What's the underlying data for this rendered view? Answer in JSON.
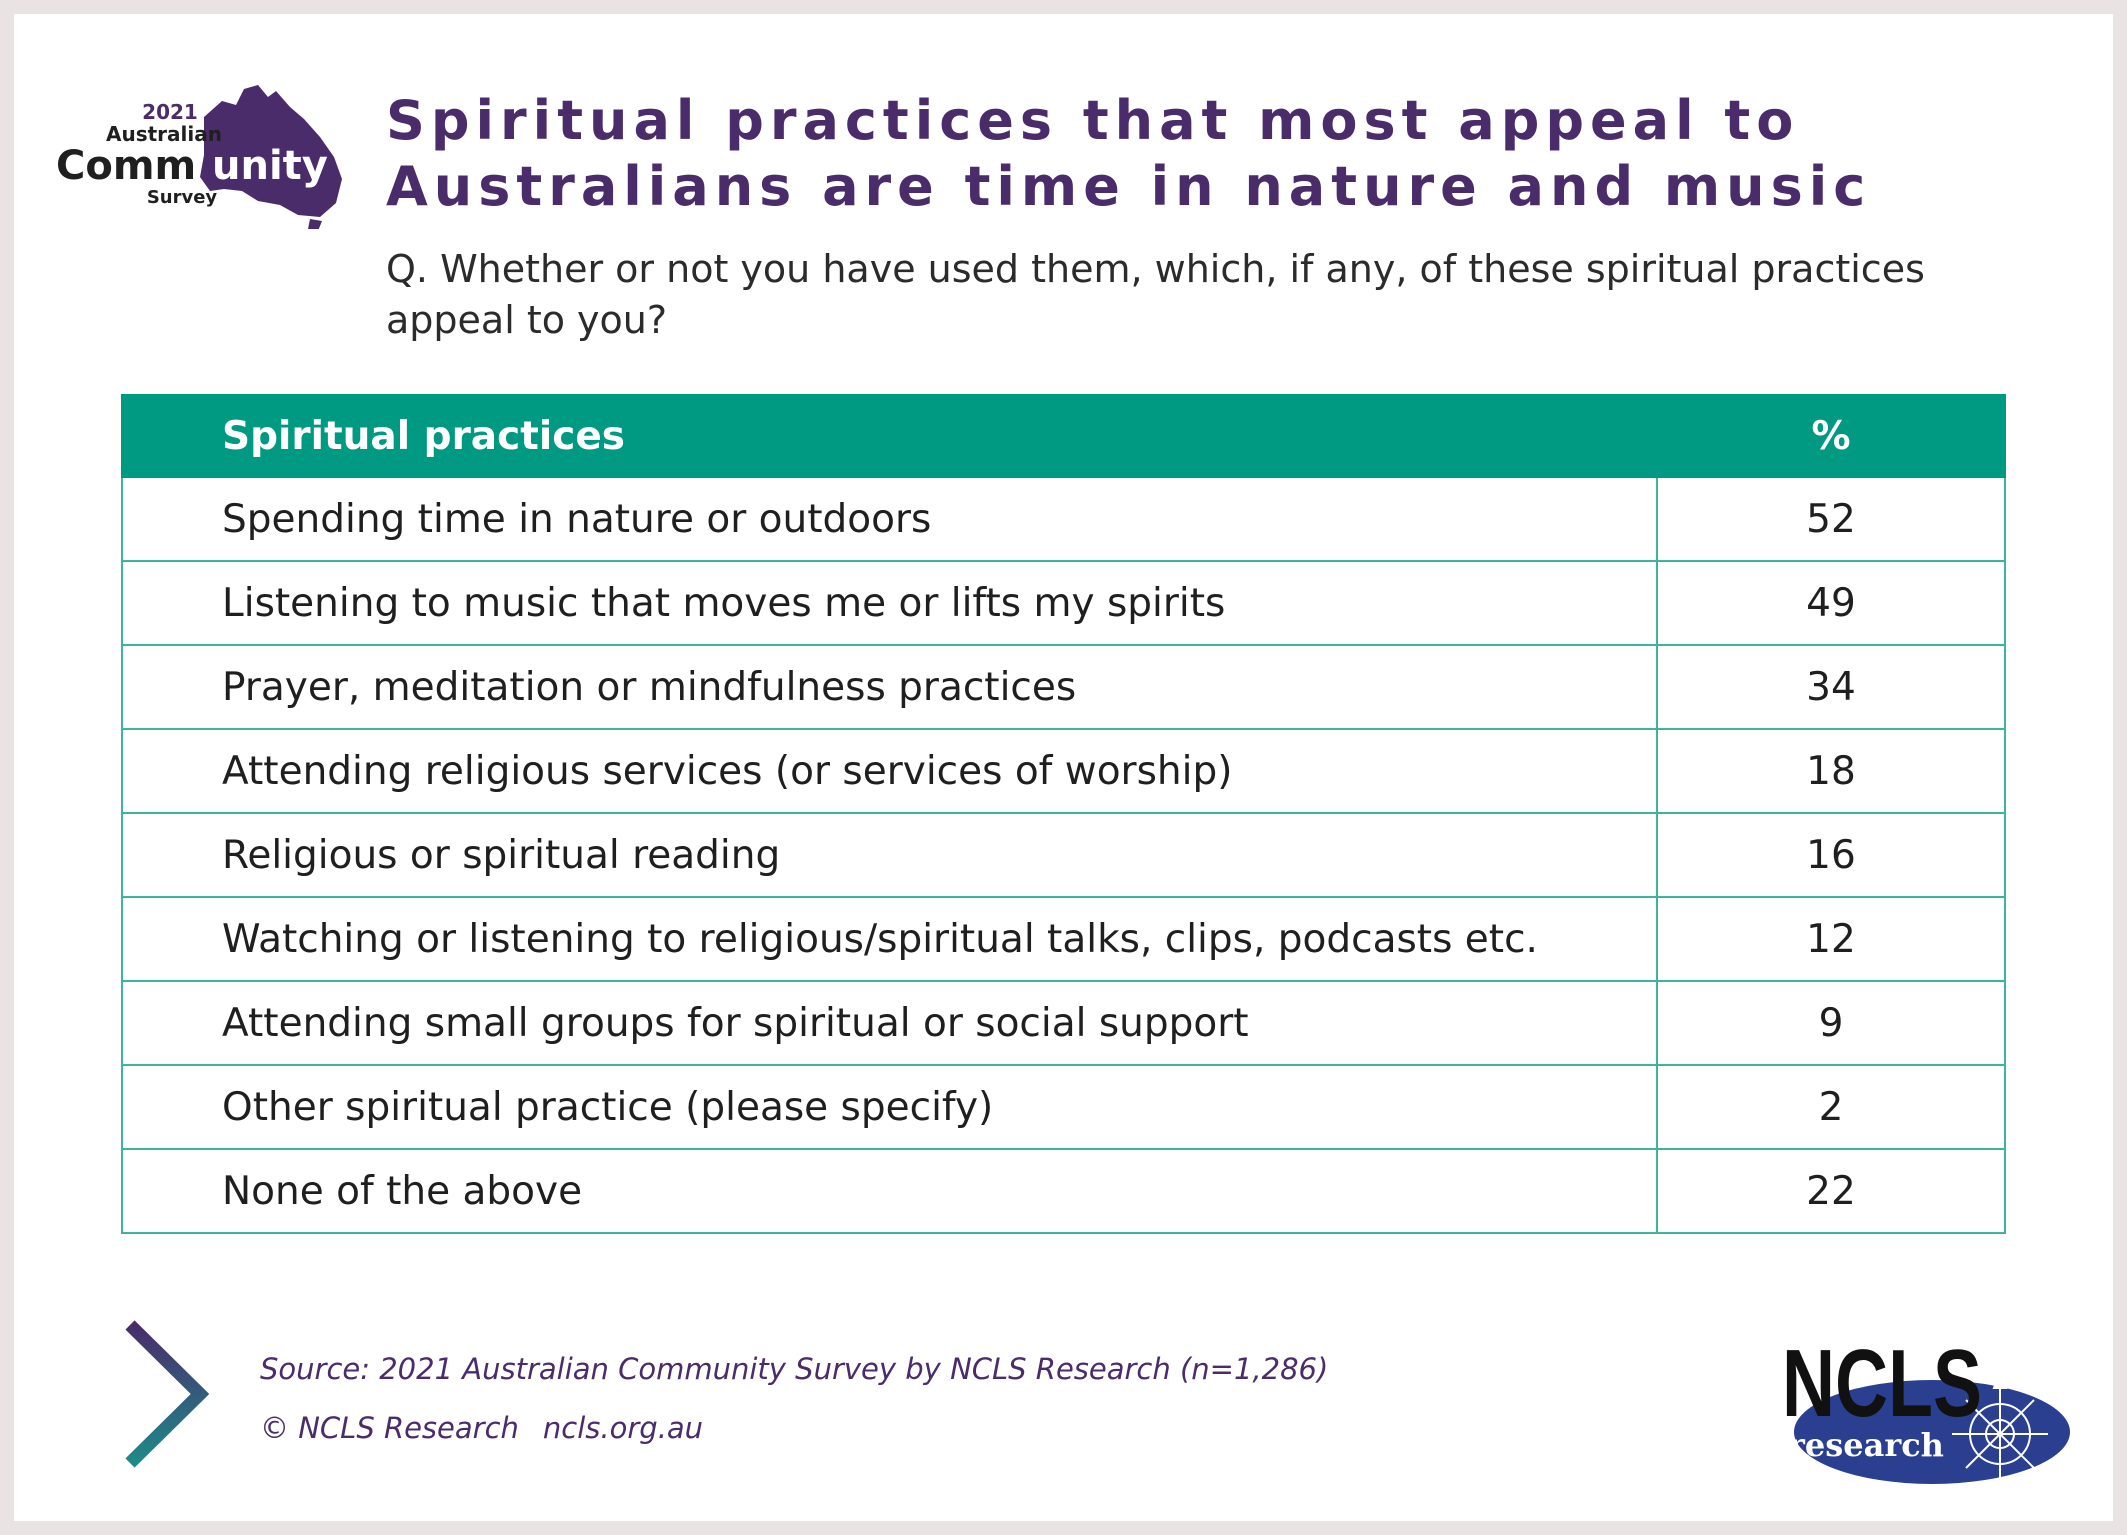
{
  "header": {
    "logo_year": "2021",
    "logo_line1": "Australian",
    "logo_line2_a": "Comm",
    "logo_line2_b": "unity",
    "logo_line3": "Survey",
    "title": "Spiritual practices that most appeal to Australians are time in nature and music",
    "question": "Q. Whether or not you have used them, which, if any, of these spiritual practices appeal to you?"
  },
  "chart_data": {
    "type": "table",
    "columns": [
      "Spiritual practices",
      "%"
    ],
    "rows": [
      {
        "label": "Spending time in nature or outdoors",
        "value": "52"
      },
      {
        "label": "Listening to music that moves me or lifts my spirits",
        "value": "49"
      },
      {
        "label": "Prayer, meditation or mindfulness practices",
        "value": "34"
      },
      {
        "label": "Attending religious services (or services of worship)",
        "value": "18"
      },
      {
        "label": "Religious or spiritual reading",
        "value": "16"
      },
      {
        "label": "Watching or listening to religious/spiritual talks, clips, podcasts etc.",
        "value": "12"
      },
      {
        "label": "Attending small groups for spiritual or social support",
        "value": "9"
      },
      {
        "label": "Other spiritual practice (please specify)",
        "value": "2"
      },
      {
        "label": "None of the above",
        "value": "22"
      }
    ]
  },
  "footer": {
    "source": "Source: 2021 Australian Community Survey by NCLS Research (n=1,286)",
    "copyright": "© NCLS Research",
    "website": "ncls.org.au",
    "ncls_logo_main": "NCLS",
    "ncls_logo_sub": "research"
  },
  "colors": {
    "purple": "#4a2c6b",
    "teal": "#009a82",
    "navy": "#2a3f8f"
  }
}
